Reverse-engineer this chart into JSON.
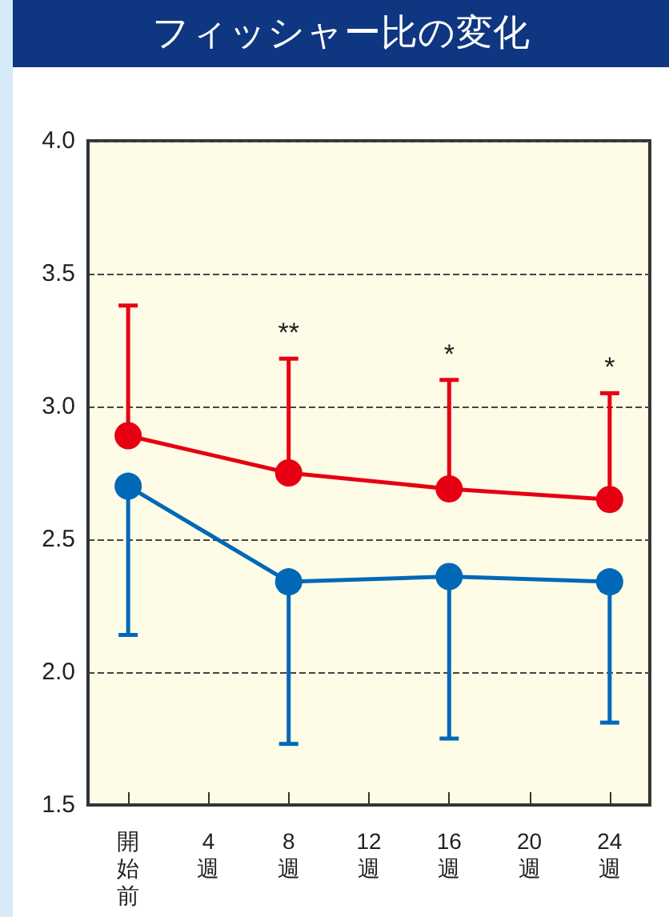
{
  "chart_data": {
    "type": "line",
    "title": "フィッシャー比の変化",
    "categories": [
      "開始前",
      "4週",
      "8週",
      "12週",
      "16週",
      "20週",
      "24週"
    ],
    "series": [
      {
        "color": "#e60012",
        "values": [
          2.89,
          null,
          2.75,
          null,
          2.69,
          null,
          2.65
        ],
        "errors": [
          [
            2.89,
            3.38
          ],
          null,
          [
            2.75,
            3.18
          ],
          null,
          [
            2.69,
            3.1
          ],
          null,
          [
            2.65,
            3.05
          ]
        ]
      },
      {
        "color": "#0068b7",
        "values": [
          2.7,
          null,
          2.34,
          null,
          2.36,
          null,
          2.34
        ],
        "errors": [
          [
            2.14,
            2.7
          ],
          null,
          [
            1.73,
            2.34
          ],
          null,
          [
            1.75,
            2.36
          ],
          null,
          [
            1.81,
            2.34
          ]
        ]
      }
    ],
    "ylim": [
      1.5,
      4.0
    ],
    "yticks": [
      1.5,
      {
        "value": 2,
        "label": "2.0"
      },
      2.5,
      {
        "value": 3,
        "label": "3.0"
      },
      3.5,
      {
        "value": 4,
        "label": "4.0"
      }
    ],
    "grid": "y",
    "marker": "circle",
    "line_style": "solid",
    "annotations": [
      "**",
      "*",
      "*"
    ]
  }
}
